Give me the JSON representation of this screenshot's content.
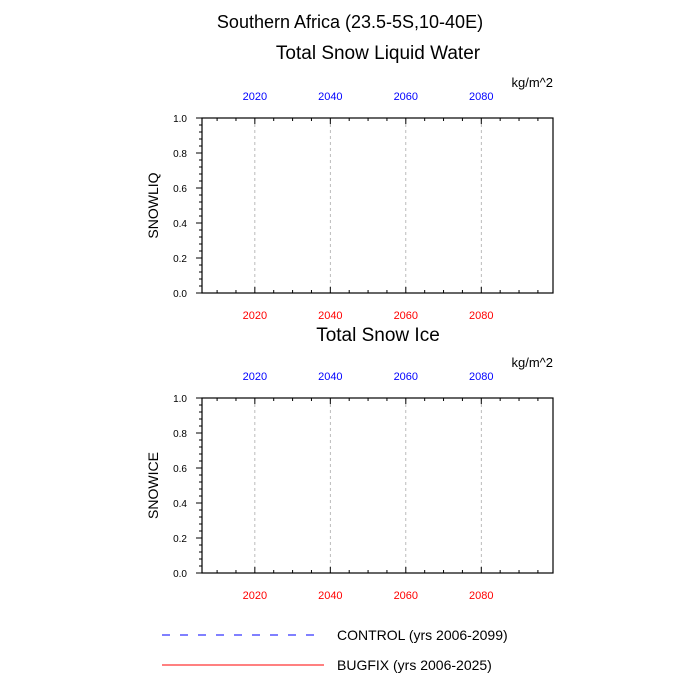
{
  "figure_title": "Southern Africa (23.5-5S,10-40E)",
  "colors": {
    "top_axis_labels": "#0000ff",
    "bottom_axis_labels": "#ff0000",
    "control_line": "#0000ff",
    "bugfix_line": "#ff0000",
    "grid": "#aaaaaa",
    "frame": "#000000"
  },
  "legend": [
    {
      "label": "CONTROL (yrs 2006-2099)",
      "style": "dashed",
      "color": "#0000ff"
    },
    {
      "label": "BUGFIX (yrs 2006-2025)",
      "style": "solid",
      "color": "#ff0000"
    }
  ],
  "chart_data": [
    {
      "type": "line",
      "title": "Total Snow Liquid Water",
      "units": "kg/m^2",
      "ylabel": "SNOWLIQ",
      "xlim": [
        2006,
        2099
      ],
      "ylim": [
        0,
        1
      ],
      "xticks": [
        2020,
        2040,
        2060,
        2080
      ],
      "xtick_labels": [
        "2020",
        "2040",
        "2060",
        "2080"
      ],
      "yticks": [
        0,
        0.2,
        0.4,
        0.6,
        0.8,
        1.0
      ],
      "ytick_labels": [
        "0.0",
        "0.2",
        "0.4",
        "0.6",
        "0.8",
        "1.0"
      ],
      "vertical_gridlines": true,
      "series": [
        {
          "name": "CONTROL (yrs 2006-2099)",
          "x": [
            2006,
            2099
          ],
          "y": [
            0,
            0
          ],
          "style": "dashed",
          "color": "#0000ff"
        },
        {
          "name": "BUGFIX (yrs 2006-2025)",
          "x": [
            2006,
            2025
          ],
          "y": [
            0,
            0
          ],
          "style": "solid",
          "color": "#ff0000"
        }
      ]
    },
    {
      "type": "line",
      "title": "Total Snow Ice",
      "units": "kg/m^2",
      "ylabel": "SNOWICE",
      "xlim": [
        2006,
        2099
      ],
      "ylim": [
        0,
        1
      ],
      "xticks": [
        2020,
        2040,
        2060,
        2080
      ],
      "xtick_labels": [
        "2020",
        "2040",
        "2060",
        "2080"
      ],
      "yticks": [
        0,
        0.2,
        0.4,
        0.6,
        0.8,
        1.0
      ],
      "ytick_labels": [
        "0.0",
        "0.2",
        "0.4",
        "0.6",
        "0.8",
        "1.0"
      ],
      "vertical_gridlines": true,
      "series": [
        {
          "name": "CONTROL (yrs 2006-2099)",
          "x": [
            2006,
            2099
          ],
          "y": [
            0,
            0
          ],
          "style": "dashed",
          "color": "#0000ff"
        },
        {
          "name": "BUGFIX (yrs 2006-2025)",
          "x": [
            2006,
            2025
          ],
          "y": [
            0,
            0
          ],
          "style": "solid",
          "color": "#ff0000"
        }
      ]
    }
  ]
}
